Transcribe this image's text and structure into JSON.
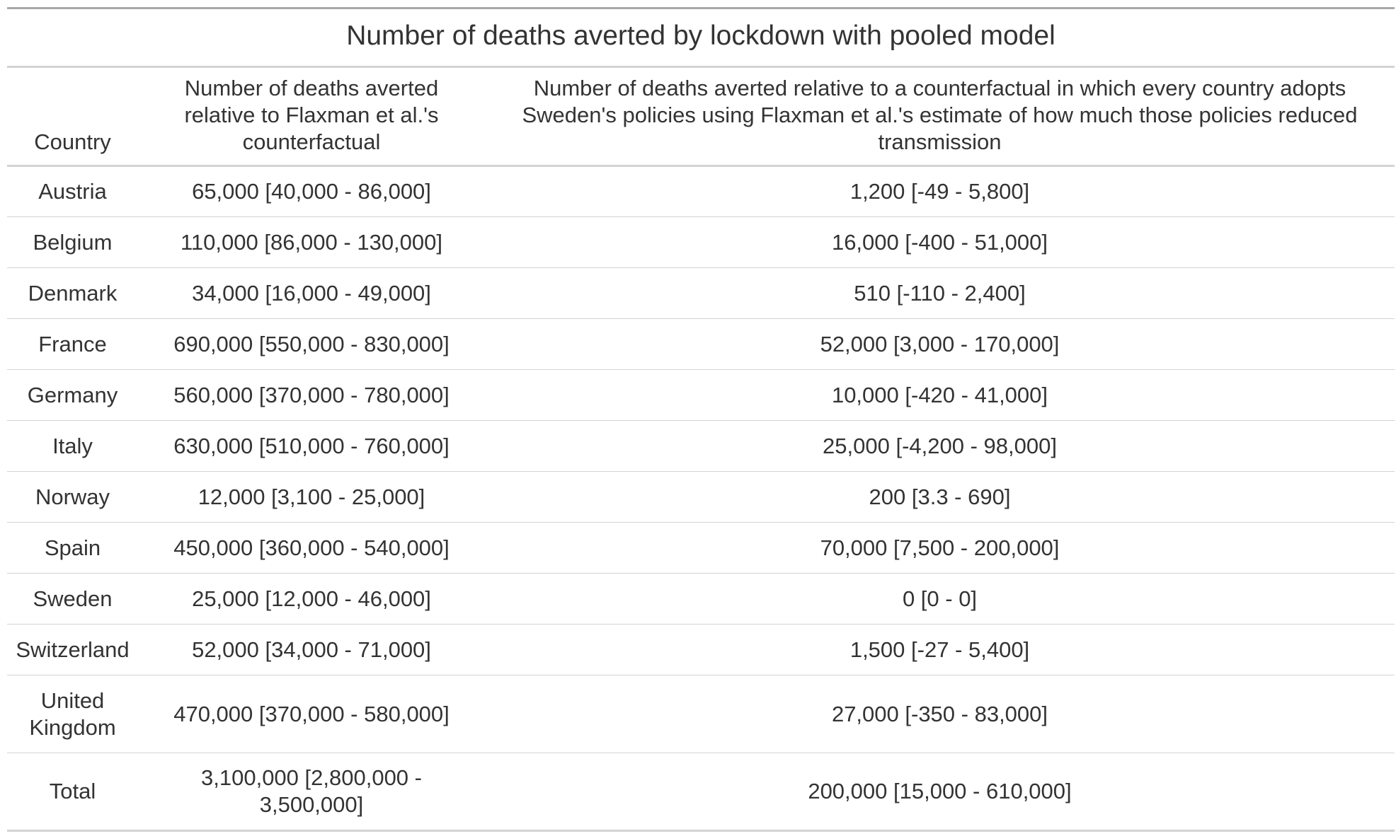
{
  "chart_data": {
    "type": "table",
    "title": "Number of deaths averted by lockdown with pooled model",
    "columns": [
      "Country",
      "Number of deaths averted relative to Flaxman et al.'s counterfactual",
      "Number of deaths averted relative to a counterfactual in which every country adopts Sweden's policies using Flaxman et al.'s estimate of how much those policies reduced transmission"
    ],
    "rows": [
      [
        "Austria",
        "65,000 [40,000 - 86,000]",
        "1,200 [-49 - 5,800]"
      ],
      [
        "Belgium",
        "110,000 [86,000 - 130,000]",
        "16,000 [-400 - 51,000]"
      ],
      [
        "Denmark",
        "34,000 [16,000 - 49,000]",
        "510 [-110 - 2,400]"
      ],
      [
        "France",
        "690,000 [550,000 - 830,000]",
        "52,000 [3,000 - 170,000]"
      ],
      [
        "Germany",
        "560,000 [370,000 - 780,000]",
        "10,000 [-420 - 41,000]"
      ],
      [
        "Italy",
        "630,000 [510,000 - 760,000]",
        "25,000 [-4,200 - 98,000]"
      ],
      [
        "Norway",
        "12,000 [3,100 - 25,000]",
        "200 [3.3 - 690]"
      ],
      [
        "Spain",
        "450,000 [360,000 - 540,000]",
        "70,000 [7,500 - 200,000]"
      ],
      [
        "Sweden",
        "25,000 [12,000 - 46,000]",
        "0 [0 - 0]"
      ],
      [
        "Switzerland",
        "52,000 [34,000 - 71,000]",
        "1,500 [-27 - 5,400]"
      ],
      [
        "United Kingdom",
        "470,000 [370,000 - 580,000]",
        "27,000 [-350 - 83,000]"
      ],
      [
        "Total",
        "3,100,000 [2,800,000 - 3,500,000]",
        "200,000 [15,000 - 610,000]"
      ]
    ]
  },
  "colors": {
    "text": "#333333",
    "outer_rule": "#a8a8a8",
    "rule": "#d3d3d3"
  }
}
